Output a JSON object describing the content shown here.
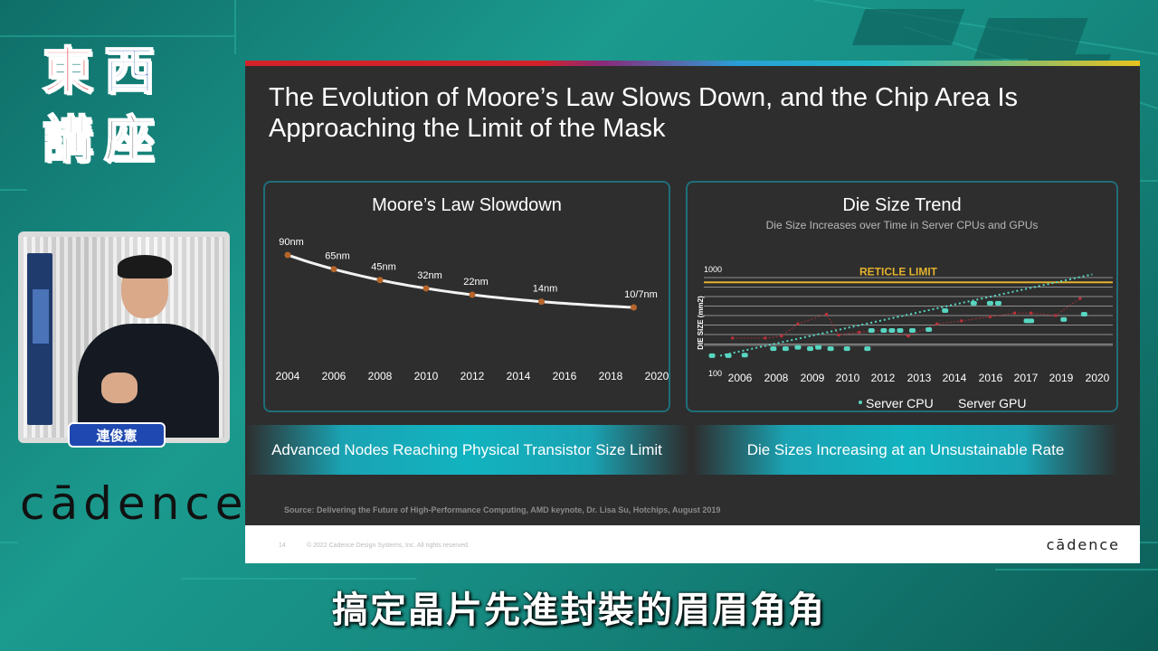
{
  "logo": {
    "chars": [
      "東",
      "西",
      "講",
      "座"
    ]
  },
  "speaker": {
    "name": "連俊憲"
  },
  "brand": {
    "name": "cādence",
    "footer_name": "cādence"
  },
  "slide": {
    "title": "The Evolution of Moore’s Law Slows Down, and the Chip Area Is Approaching the Limit of the Mask",
    "left_banner": "Advanced Nodes Reaching Physical Transistor Size Limit",
    "right_banner": "Die Sizes Increasing at an Unsustainable Rate",
    "source": "Source: Delivering the Future of High-Performance Computing, AMD keynote, Dr. Lisa Su, Hotchips, August 2019",
    "page_number": "14",
    "copyright": "© 2022 Cadence Design Systems, Inc. All rights reserved."
  },
  "chart_data": [
    {
      "type": "line",
      "title": "Moore’s Law Slowdown",
      "x_ticks": [
        "2004",
        "2006",
        "2008",
        "2010",
        "2012",
        "2014",
        "2016",
        "2018",
        "2020"
      ],
      "x": [
        2004,
        2006,
        2008,
        2010,
        2012,
        2014,
        2016,
        2018
      ],
      "points": [
        {
          "year": 2004,
          "label": "90nm"
        },
        {
          "year": 2006,
          "label": "65nm"
        },
        {
          "year": 2008,
          "label": "45nm"
        },
        {
          "year": 2010,
          "label": "32nm"
        },
        {
          "year": 2012,
          "label": "22nm"
        },
        {
          "year": 2015,
          "label": "14nm"
        },
        {
          "year": 2019,
          "label": "10/7nm"
        }
      ],
      "xlim": [
        2004,
        2020
      ],
      "colors": {
        "line": "#f2f2f2",
        "marker": "#b5652a"
      }
    },
    {
      "type": "scatter",
      "title": "Die Size Trend",
      "subtitle": "Die Size Increases over Time in Server CPUs and GPUs",
      "ylabel": "DIE SIZE (mm2)",
      "y_ticks": [
        "1000",
        "100"
      ],
      "yscale": "log",
      "ylim": [
        100,
        1000
      ],
      "x_ticks": [
        "2006",
        "2008",
        "2009",
        "2010",
        "2012",
        "2013",
        "2014",
        "2016",
        "2017",
        "2019",
        "2020"
      ],
      "annotation": "RETICLE LIMIT",
      "reticle_limit": 850,
      "legend": [
        "Server CPU",
        "Server GPU"
      ],
      "series": [
        {
          "name": "Server CPU",
          "color": "#58d6c2",
          "points": [
            [
              0.02,
              150
            ],
            [
              0.06,
              150
            ],
            [
              0.1,
              152
            ],
            [
              0.17,
              175
            ],
            [
              0.2,
              175
            ],
            [
              0.23,
              180
            ],
            [
              0.26,
              175
            ],
            [
              0.28,
              180
            ],
            [
              0.31,
              175
            ],
            [
              0.35,
              175
            ],
            [
              0.4,
              175
            ],
            [
              0.41,
              260
            ],
            [
              0.44,
              260
            ],
            [
              0.46,
              260
            ],
            [
              0.48,
              260
            ],
            [
              0.51,
              260
            ],
            [
              0.55,
              265
            ],
            [
              0.59,
              400
            ],
            [
              0.66,
              470
            ],
            [
              0.7,
              470
            ],
            [
              0.72,
              470
            ],
            [
              0.79,
              320
            ],
            [
              0.8,
              320
            ],
            [
              0.88,
              330
            ],
            [
              0.93,
              370
            ]
          ]
        },
        {
          "name": "Server GPU",
          "color": "#c0303a",
          "points": [
            [
              0.07,
              220
            ],
            [
              0.15,
              220
            ],
            [
              0.19,
              230
            ],
            [
              0.23,
              300
            ],
            [
              0.3,
              370
            ],
            [
              0.33,
              235
            ],
            [
              0.38,
              250
            ],
            [
              0.44,
              260
            ],
            [
              0.5,
              230
            ],
            [
              0.57,
              300
            ],
            [
              0.63,
              320
            ],
            [
              0.7,
              350
            ],
            [
              0.76,
              380
            ],
            [
              0.8,
              380
            ],
            [
              0.86,
              360
            ],
            [
              0.92,
              520
            ]
          ]
        }
      ],
      "trend": {
        "from": [
          0.04,
          150
        ],
        "to": [
          0.95,
          880
        ],
        "color": "#58d6c2"
      }
    }
  ],
  "subtitle": "搞定晶片先進封裝的眉眉角角"
}
